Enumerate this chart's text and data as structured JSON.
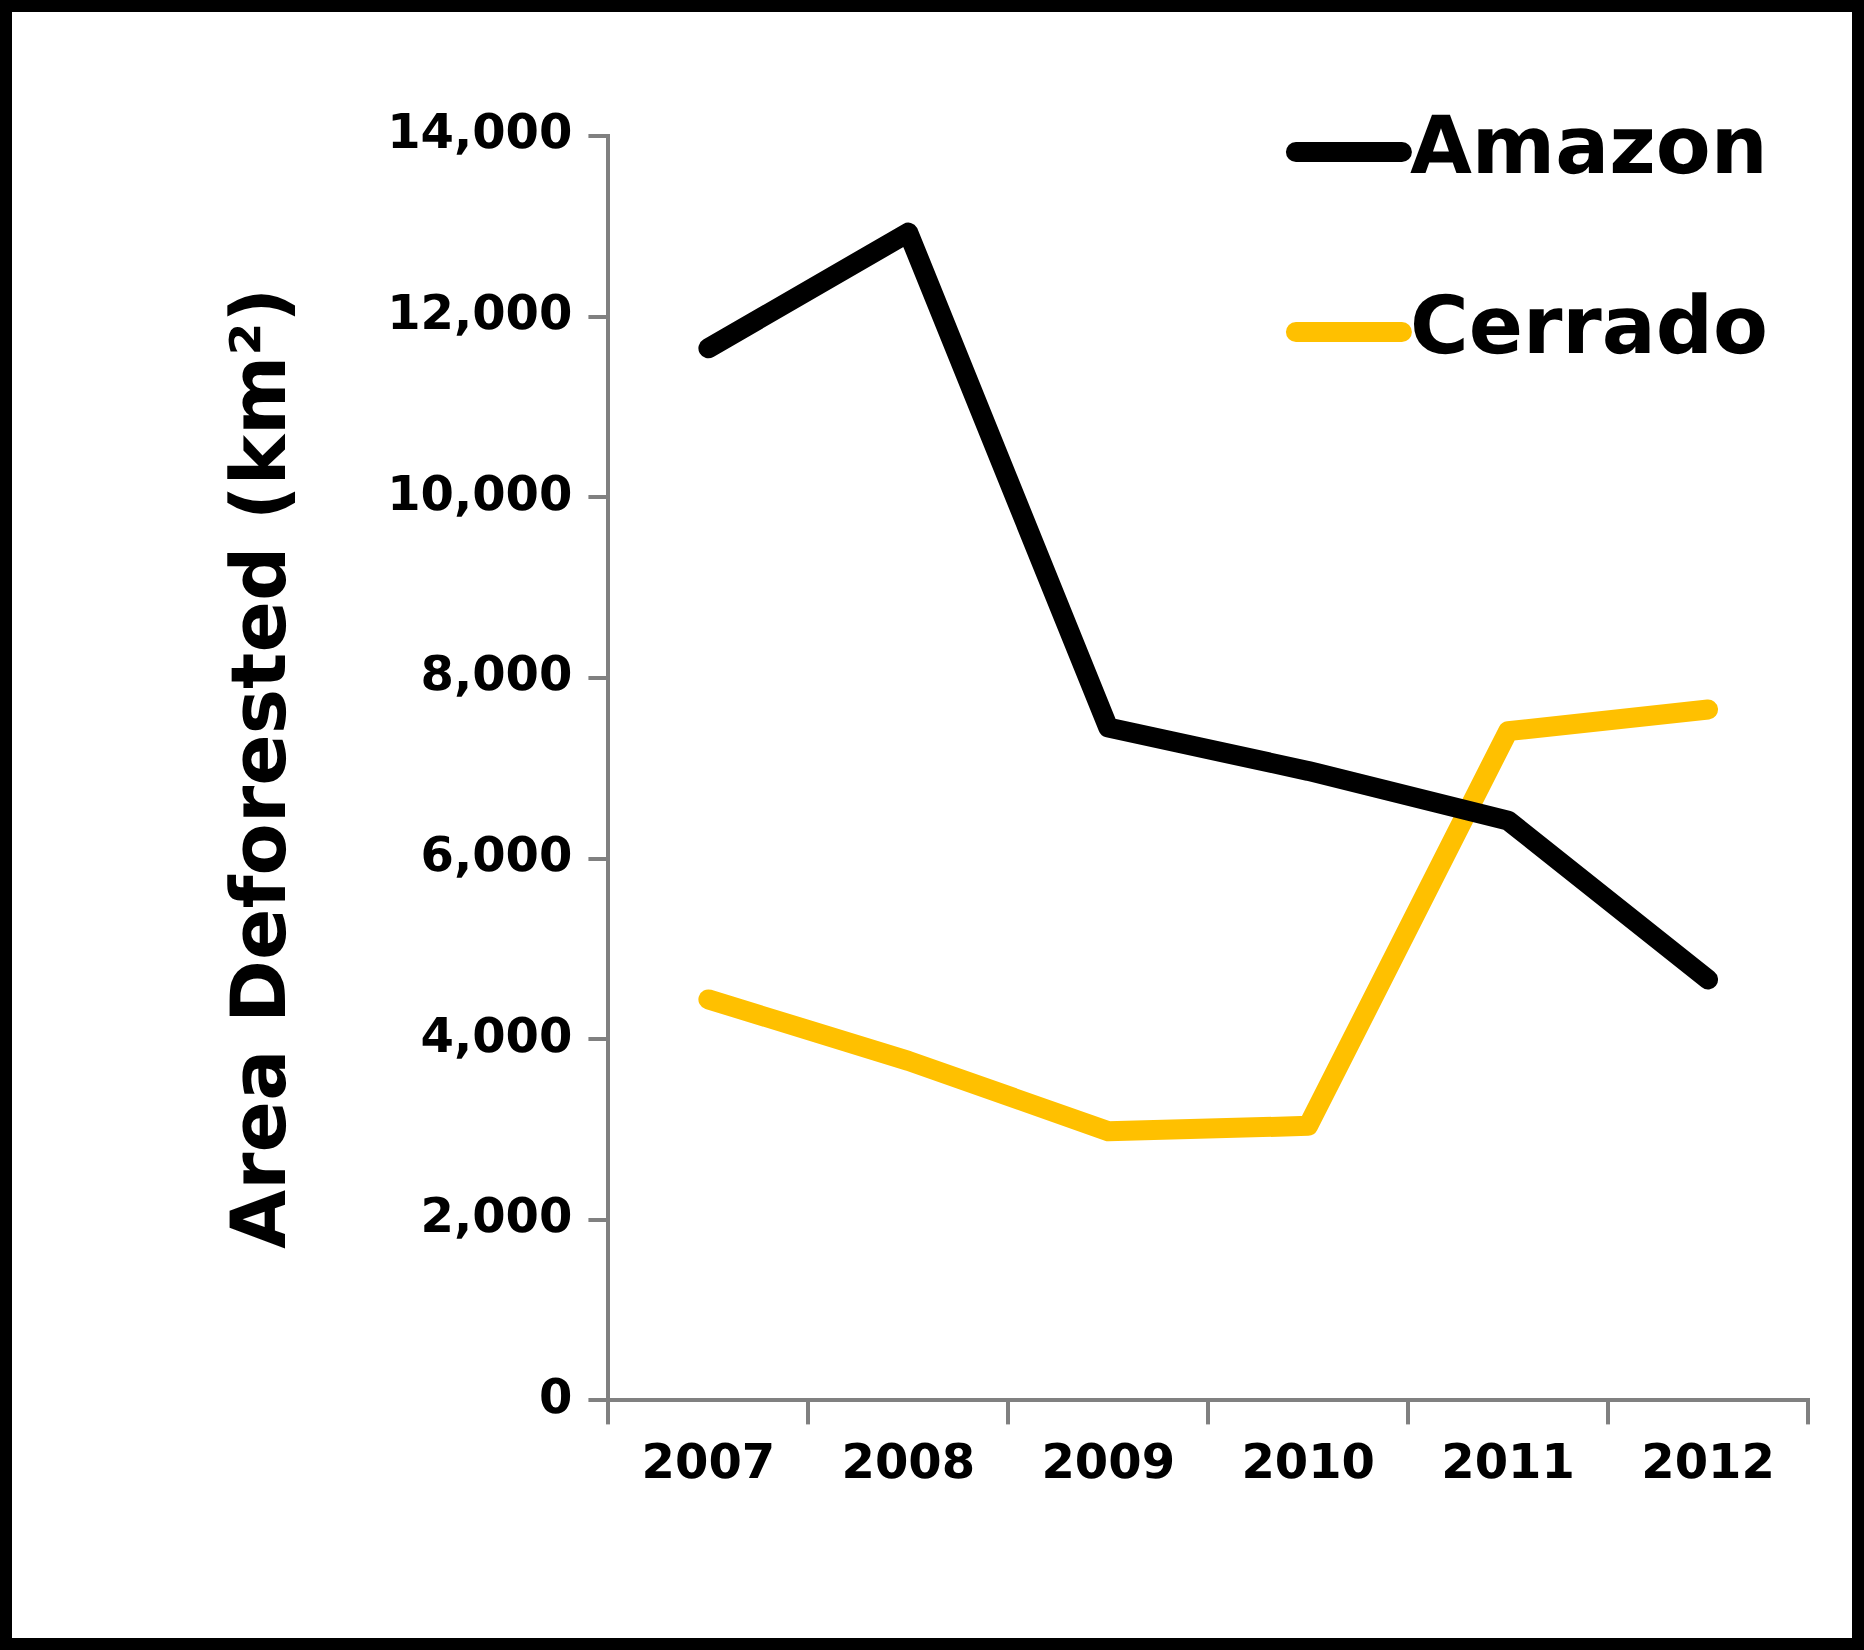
{
  "chart_data": {
    "type": "line",
    "ylabel": "Area Deforested (km²)",
    "categories": [
      "2007",
      "2008",
      "2009",
      "2010",
      "2011",
      "2012"
    ],
    "series": [
      {
        "name": "Amazon",
        "color": "#000000",
        "values": [
          11650,
          12930,
          7450,
          6970,
          6420,
          4660
        ]
      },
      {
        "name": "Cerrado",
        "color": "#ffc000",
        "values": [
          4440,
          3760,
          2980,
          3040,
          7410,
          7650
        ]
      }
    ],
    "ylim": [
      0,
      14000
    ],
    "yticks": [
      0,
      {
        "value": 2000,
        "label": "2,000"
      },
      {
        "value": 4000,
        "label": "4,000"
      },
      {
        "value": 6000,
        "label": "6,000"
      },
      {
        "value": 8000,
        "label": "8,000"
      },
      {
        "value": 10000,
        "label": "10,000"
      },
      {
        "value": 12000,
        "label": "12,000"
      },
      {
        "value": 14000,
        "label": "14,000"
      }
    ],
    "grid": false,
    "legend": "top right",
    "marker": "none",
    "line_style": "solid"
  }
}
